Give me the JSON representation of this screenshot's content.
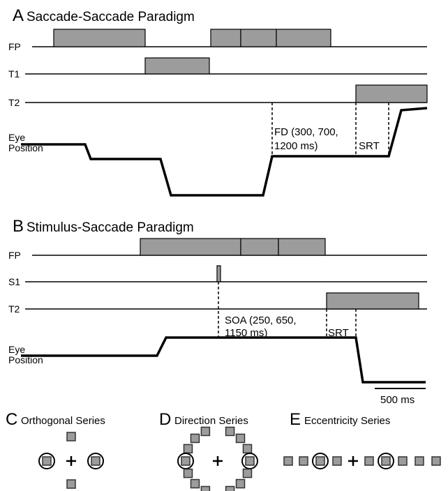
{
  "panel_a": {
    "letter": "A",
    "title": "Saccade-Saccade Paradigm",
    "rows": [
      "FP",
      "T1",
      "T2"
    ],
    "eye_label": [
      "Eye",
      "Position"
    ],
    "fd_label": [
      "FD (300, 700,",
      "1200 ms)"
    ],
    "srt_label": "SRT"
  },
  "panel_b": {
    "letter": "B",
    "title": "Stimulus-Saccade Paradigm",
    "rows": [
      "FP",
      "S1",
      "T2"
    ],
    "eye_label": [
      "Eye",
      "Position"
    ],
    "soa_label": [
      "SOA (250, 650,",
      "1150 ms)"
    ],
    "srt_label": "SRT",
    "scale_label": "500 ms"
  },
  "series": [
    {
      "letter": "C",
      "title": "Orthogonal Series"
    },
    {
      "letter": "D",
      "title": "Direction Series"
    },
    {
      "letter": "E",
      "title": "Eccentricity Series"
    }
  ]
}
